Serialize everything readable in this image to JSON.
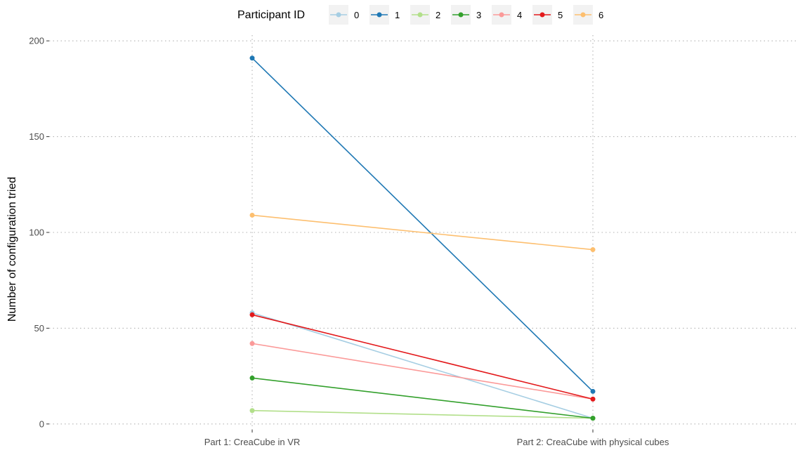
{
  "chart_data": {
    "type": "line",
    "title": "",
    "xlabel": "",
    "ylabel": "Number of configuration tried",
    "categories": [
      "Part 1: CreaCube in VR",
      "Part 2: CreaCube with physical cubes"
    ],
    "ylim": [
      -3,
      203
    ],
    "yticks": [
      0,
      50,
      100,
      150,
      200
    ],
    "grid": true,
    "legend": {
      "title": "Participant ID",
      "position": "top"
    },
    "series": [
      {
        "name": "0",
        "color": "#a6cee3",
        "values": [
          58,
          3
        ]
      },
      {
        "name": "1",
        "color": "#1f78b4",
        "values": [
          191,
          17
        ]
      },
      {
        "name": "2",
        "color": "#b2df8a",
        "values": [
          7,
          3
        ]
      },
      {
        "name": "3",
        "color": "#33a02c",
        "values": [
          24,
          3
        ]
      },
      {
        "name": "4",
        "color": "#fb9a99",
        "values": [
          42,
          13
        ]
      },
      {
        "name": "5",
        "color": "#e31a1c",
        "values": [
          57,
          13
        ]
      },
      {
        "name": "6",
        "color": "#fdbf6f",
        "values": [
          109,
          91
        ]
      }
    ]
  }
}
